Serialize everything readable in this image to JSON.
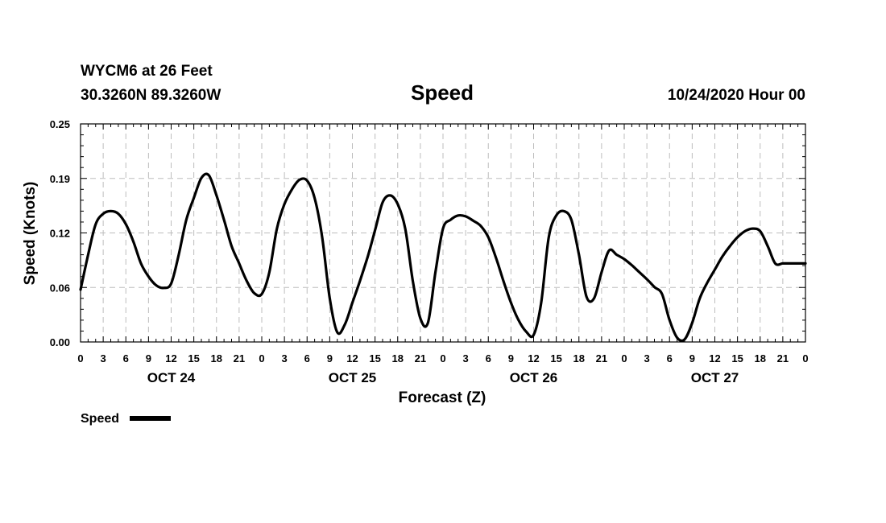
{
  "header": {
    "station": "WYCM6 at 26 Feet",
    "coords": "30.3260N 89.3260W",
    "title": "Speed",
    "timestamp": "10/24/2020 Hour 00"
  },
  "chart_data": {
    "type": "line",
    "title": "Speed",
    "xlabel": "Forecast (Z)",
    "ylabel": "Speed (Knots)",
    "ylim": [
      0,
      0.25
    ],
    "y_ticks": [
      "0.00",
      "0.06",
      "0.12",
      "0.19",
      "0.25"
    ],
    "x_unit": "hours from 10/24/2020 00Z",
    "xlim": [
      0,
      96
    ],
    "x_tick_labels": [
      "0",
      "3",
      "6",
      "9",
      "12",
      "15",
      "18",
      "21",
      "0",
      "3",
      "6",
      "9",
      "12",
      "15",
      "18",
      "21",
      "0",
      "3",
      "6",
      "9",
      "12",
      "15",
      "18",
      "21",
      "0",
      "3",
      "6",
      "9",
      "12",
      "15",
      "18",
      "21",
      "0"
    ],
    "day_labels": [
      "OCT 24",
      "OCT 25",
      "OCT 26",
      "OCT 27"
    ],
    "grid": true,
    "legend_position": "bottom-left",
    "series": [
      {
        "name": "Speed",
        "color": "#000000",
        "x": [
          0,
          1,
          2,
          3,
          4,
          5,
          6,
          7,
          8,
          9,
          10,
          11,
          12,
          13,
          14,
          15,
          16,
          17,
          18,
          19,
          20,
          21,
          22,
          23,
          24,
          25,
          26,
          27,
          28,
          29,
          30,
          31,
          32,
          33,
          34,
          35,
          36,
          37,
          38,
          39,
          40,
          41,
          42,
          43,
          44,
          45,
          46,
          47,
          48,
          49,
          50,
          51,
          52,
          53,
          54,
          55,
          56,
          57,
          58,
          59,
          60,
          61,
          62,
          63,
          64,
          65,
          66,
          67,
          68,
          69,
          70,
          71,
          72,
          73,
          74,
          75,
          76,
          77,
          78,
          79,
          80,
          81,
          82,
          83,
          84,
          85,
          86,
          87,
          88,
          89,
          90,
          91,
          92,
          93,
          94,
          95,
          96
        ],
        "y": [
          0.06,
          0.1,
          0.135,
          0.147,
          0.15,
          0.147,
          0.135,
          0.115,
          0.09,
          0.075,
          0.065,
          0.062,
          0.067,
          0.1,
          0.14,
          0.165,
          0.188,
          0.191,
          0.168,
          0.14,
          0.11,
          0.09,
          0.07,
          0.056,
          0.055,
          0.08,
          0.13,
          0.158,
          0.175,
          0.186,
          0.185,
          0.165,
          0.12,
          0.05,
          0.011,
          0.02,
          0.045,
          0.07,
          0.097,
          0.128,
          0.16,
          0.168,
          0.158,
          0.13,
          0.07,
          0.027,
          0.022,
          0.08,
          0.13,
          0.14,
          0.145,
          0.144,
          0.139,
          0.133,
          0.12,
          0.097,
          0.07,
          0.045,
          0.025,
          0.012,
          0.008,
          0.045,
          0.12,
          0.145,
          0.15,
          0.14,
          0.1,
          0.052,
          0.05,
          0.08,
          0.105,
          0.1,
          0.095,
          0.088,
          0.08,
          0.072,
          0.063,
          0.055,
          0.025,
          0.005,
          0.003,
          0.022,
          0.05,
          0.068,
          0.083,
          0.098,
          0.11,
          0.12,
          0.127,
          0.13,
          0.127,
          0.11,
          0.09,
          0.09,
          0.09,
          0.09,
          0.09
        ]
      }
    ]
  },
  "legend": {
    "label": "Speed"
  }
}
